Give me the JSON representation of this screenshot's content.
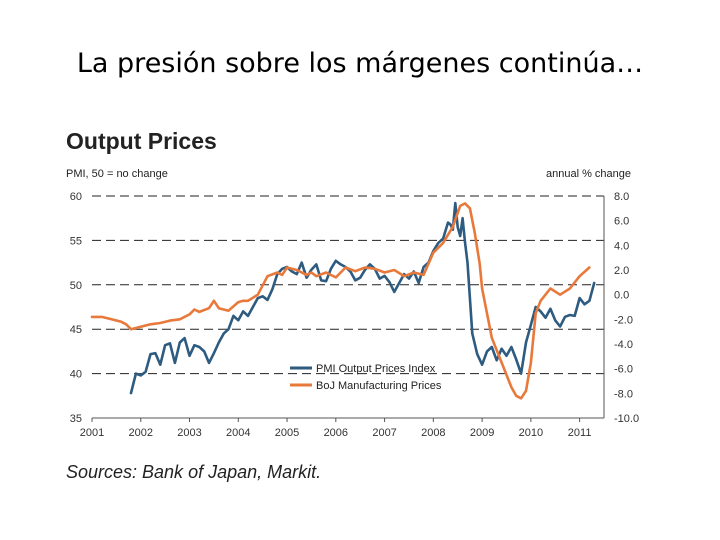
{
  "slide": {
    "title": "La presión sobre los márgenes continúa…"
  },
  "chart_data": {
    "type": "line",
    "title": "Output Prices",
    "ylabel_left": "PMI, 50 = no change",
    "ylabel_right": "annual % change",
    "x_ticks": [
      "2001",
      "2002",
      "2003",
      "2004",
      "2005",
      "2006",
      "2007",
      "2008",
      "2009",
      "2010",
      "2011"
    ],
    "y_left_ticks": [
      "60",
      "55",
      "50",
      "45",
      "40",
      "35"
    ],
    "y_right_ticks": [
      "8.0",
      "6.0",
      "4.0",
      "2.0",
      "0.0",
      "-2.0",
      "-4.0",
      "-6.0",
      "-8.0",
      "-10.0"
    ],
    "ylim_left": [
      35,
      60
    ],
    "ylim_right": [
      -10,
      8
    ],
    "grid": "dashed horizontal",
    "legend_position": "bottom-center",
    "series": [
      {
        "name": "PMI Output Prices Index",
        "axis": "left",
        "color": "#2e5b80",
        "x": [
          2001.8,
          2001.9,
          2002.0,
          2002.1,
          2002.2,
          2002.3,
          2002.4,
          2002.5,
          2002.6,
          2002.7,
          2002.8,
          2002.9,
          2003.0,
          2003.1,
          2003.2,
          2003.3,
          2003.4,
          2003.5,
          2003.6,
          2003.7,
          2003.8,
          2003.9,
          2004.0,
          2004.1,
          2004.2,
          2004.3,
          2004.4,
          2004.5,
          2004.6,
          2004.7,
          2004.8,
          2004.9,
          2005.0,
          2005.1,
          2005.2,
          2005.3,
          2005.4,
          2005.5,
          2005.6,
          2005.7,
          2005.8,
          2005.9,
          2006.0,
          2006.1,
          2006.2,
          2006.3,
          2006.4,
          2006.5,
          2006.6,
          2006.7,
          2006.8,
          2006.9,
          2007.0,
          2007.1,
          2007.2,
          2007.3,
          2007.4,
          2007.5,
          2007.6,
          2007.7,
          2007.8,
          2007.9,
          2008.0,
          2008.1,
          2008.2,
          2008.3,
          2008.35,
          2008.4,
          2008.45,
          2008.5,
          2008.55,
          2008.6,
          2008.65,
          2008.7,
          2008.8,
          2008.9,
          2009.0,
          2009.1,
          2009.2,
          2009.3,
          2009.4,
          2009.5,
          2009.6,
          2009.7,
          2009.8,
          2009.9,
          2010.0,
          2010.1,
          2010.2,
          2010.3,
          2010.4,
          2010.5,
          2010.6,
          2010.7,
          2010.8,
          2010.9,
          2011.0,
          2011.1,
          2011.2,
          2011.3
        ],
        "values": [
          37.8,
          40.0,
          39.8,
          40.2,
          42.2,
          42.3,
          41.0,
          43.2,
          43.4,
          41.2,
          43.5,
          44.0,
          42.0,
          43.2,
          43.0,
          42.5,
          41.2,
          42.3,
          43.5,
          44.5,
          45.0,
          46.5,
          46.0,
          47.0,
          46.5,
          47.5,
          48.5,
          48.7,
          48.3,
          49.5,
          51.2,
          51.8,
          52.0,
          51.5,
          51.2,
          52.5,
          50.8,
          51.7,
          52.3,
          50.5,
          50.4,
          51.8,
          52.7,
          52.3,
          52.0,
          51.5,
          50.5,
          50.8,
          51.7,
          52.3,
          51.8,
          50.7,
          51.0,
          50.3,
          49.2,
          50.2,
          51.2,
          50.7,
          51.5,
          50.2,
          52.0,
          52.5,
          53.8,
          54.7,
          55.2,
          57.0,
          56.8,
          56.2,
          59.2,
          56.5,
          55.5,
          57.5,
          54.8,
          52.5,
          44.5,
          42.2,
          41.0,
          42.5,
          43.0,
          41.5,
          42.8,
          42.0,
          43.0,
          41.6,
          40.0,
          43.5,
          45.5,
          47.5,
          47.0,
          46.3,
          47.3,
          46.0,
          45.3,
          46.4,
          46.6,
          46.5,
          48.5,
          47.8,
          48.2,
          50.2
        ]
      },
      {
        "name": "BoJ Manufacturing Prices",
        "axis": "right",
        "color": "#e8793b",
        "x": [
          2001.0,
          2001.2,
          2001.4,
          2001.6,
          2001.7,
          2001.8,
          2002.0,
          2002.2,
          2002.4,
          2002.6,
          2002.8,
          2003.0,
          2003.1,
          2003.2,
          2003.4,
          2003.5,
          2003.6,
          2003.8,
          2004.0,
          2004.1,
          2004.2,
          2004.4,
          2004.6,
          2004.8,
          2004.9,
          2005.0,
          2005.2,
          2005.4,
          2005.5,
          2005.6,
          2005.8,
          2006.0,
          2006.1,
          2006.2,
          2006.4,
          2006.6,
          2006.8,
          2007.0,
          2007.2,
          2007.4,
          2007.6,
          2007.8,
          2008.0,
          2008.2,
          2008.4,
          2008.55,
          2008.65,
          2008.75,
          2008.85,
          2008.95,
          2009.0,
          2009.2,
          2009.4,
          2009.6,
          2009.7,
          2009.8,
          2009.9,
          2010.0,
          2010.1,
          2010.2,
          2010.4,
          2010.6,
          2010.8,
          2011.0,
          2011.2
        ],
        "values": [
          -1.8,
          -1.8,
          -2.0,
          -2.2,
          -2.4,
          -2.8,
          -2.6,
          -2.4,
          -2.3,
          -2.1,
          -2.0,
          -1.6,
          -1.2,
          -1.4,
          -1.1,
          -0.5,
          -1.1,
          -1.3,
          -0.6,
          -0.5,
          -0.5,
          0.0,
          1.5,
          1.8,
          1.6,
          2.2,
          2.0,
          1.6,
          1.8,
          1.5,
          1.8,
          1.4,
          1.8,
          2.2,
          1.9,
          2.2,
          2.1,
          1.8,
          2.0,
          1.5,
          1.8,
          1.6,
          3.4,
          4.2,
          5.5,
          7.2,
          7.4,
          7.0,
          5.0,
          2.5,
          0.5,
          -3.5,
          -5.5,
          -7.5,
          -8.2,
          -8.4,
          -7.8,
          -5.5,
          -1.5,
          -0.5,
          0.5,
          0.0,
          0.5,
          1.5,
          2.2
        ]
      }
    ]
  },
  "sources": {
    "text": "Sources: Bank of Japan, Markit."
  }
}
